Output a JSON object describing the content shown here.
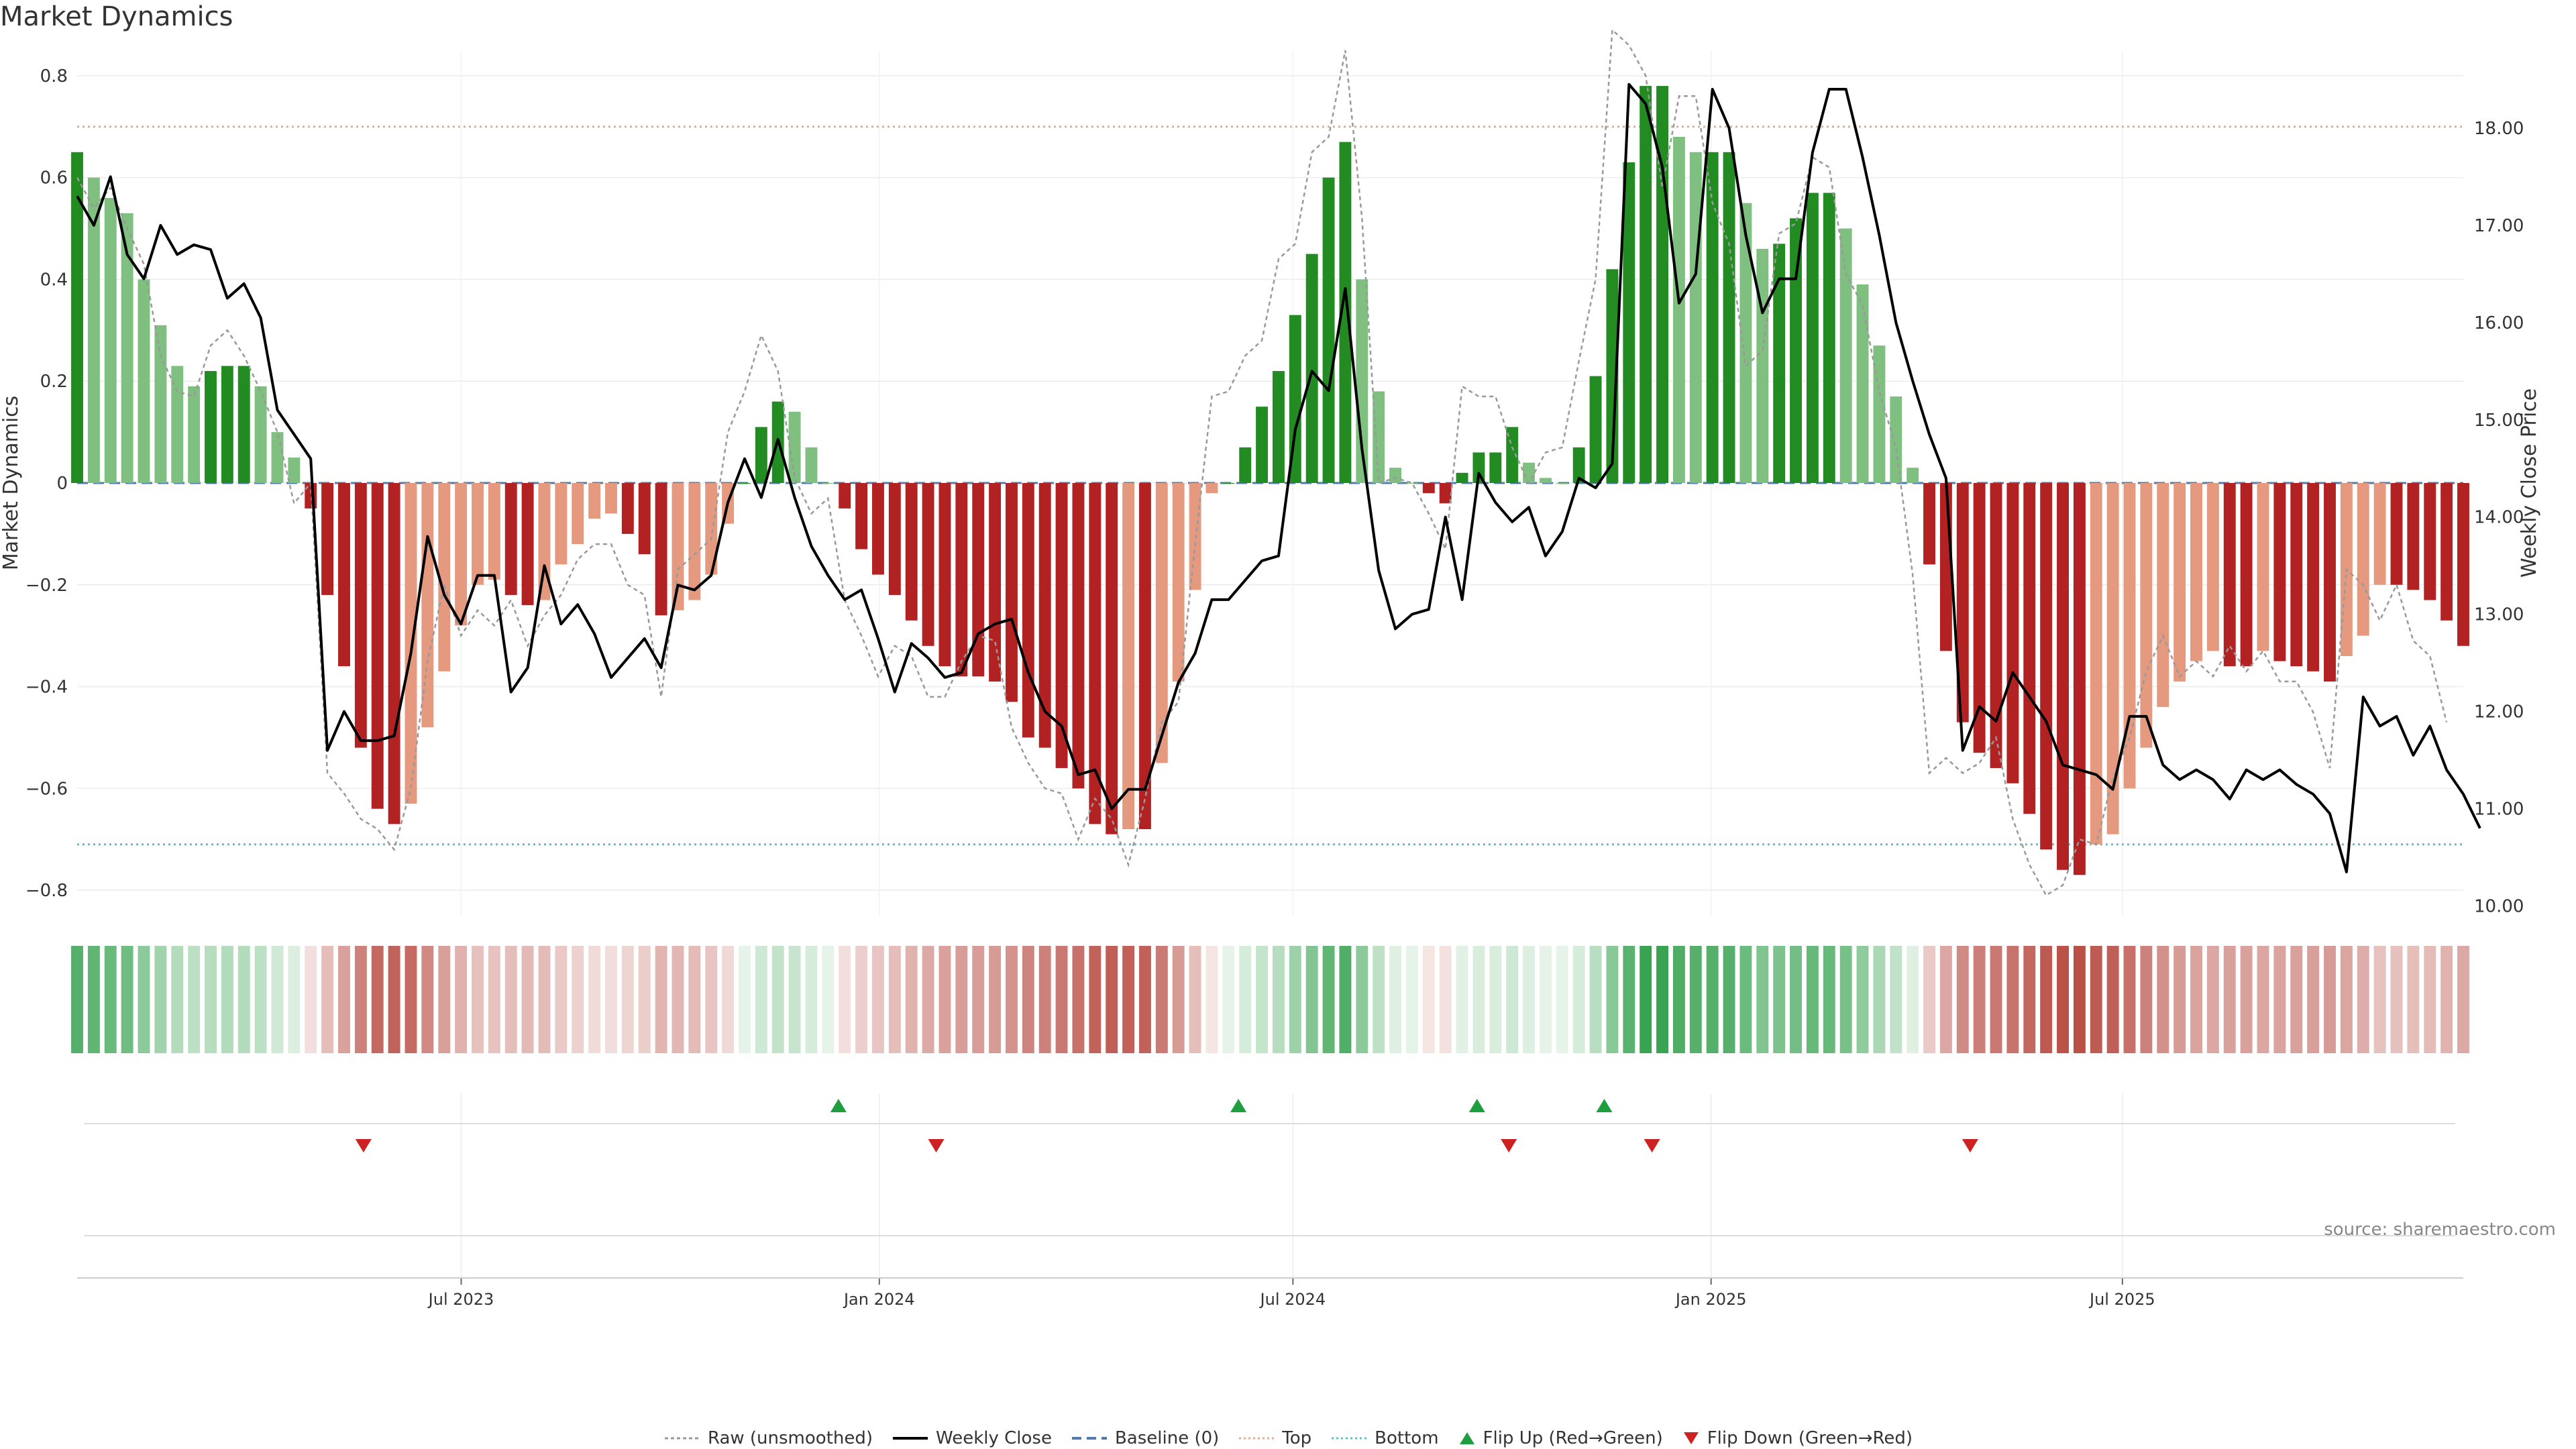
{
  "title": "Market Dynamics",
  "source": "source: sharemaestro.com",
  "chart_data": {
    "type": "bar",
    "title": "Market Dynamics",
    "ylabel": "Market Dynamics",
    "y2label": "Weekly Close Price",
    "ylim": [
      -0.85,
      0.85
    ],
    "y2lim": [
      9.9,
      18.8
    ],
    "yticks": [
      0.8,
      0.6,
      0.4,
      0.2,
      0,
      -0.2,
      -0.4,
      -0.6,
      -0.8
    ],
    "ytick_labels": [
      "0.8",
      "0.6",
      "0.4",
      "0.2",
      "0",
      "−0.2",
      "−0.4",
      "−0.6",
      "−0.8"
    ],
    "y2ticks": [
      18,
      17,
      16,
      15,
      14,
      13,
      12,
      11,
      10
    ],
    "y2tick_labels": [
      "18.00",
      "17.00",
      "16.00",
      "15.00",
      "14.00",
      "13.00",
      "12.00",
      "11.00",
      "10.00"
    ],
    "x_start": "2023-01-13",
    "x_end": "2025-11-28",
    "xticks": [
      {
        "date": "2023-07-01",
        "label": "Jul 2023"
      },
      {
        "date": "2024-01-01",
        "label": "Jan 2024"
      },
      {
        "date": "2024-07-01",
        "label": "Jul 2024"
      },
      {
        "date": "2025-01-01",
        "label": "Jan 2025"
      },
      {
        "date": "2025-07-01",
        "label": "Jul 2025"
      }
    ],
    "top_line": 0.7,
    "bottom_line": -0.71,
    "baseline": 0,
    "grid": true,
    "legend_position": "bottom-center",
    "dynamics": [
      0.65,
      0.6,
      0.56,
      0.53,
      0.4,
      0.31,
      0.23,
      0.19,
      0.22,
      0.23,
      0.23,
      0.19,
      0.1,
      0.05,
      -0.05,
      -0.22,
      -0.36,
      -0.52,
      -0.64,
      -0.67,
      -0.63,
      -0.48,
      -0.37,
      -0.28,
      -0.2,
      -0.19,
      -0.22,
      -0.24,
      -0.23,
      -0.16,
      -0.12,
      -0.07,
      -0.06,
      -0.1,
      -0.14,
      -0.26,
      -0.25,
      -0.23,
      -0.18,
      -0.08,
      0.0,
      0.11,
      0.16,
      0.14,
      0.07,
      0.0,
      -0.05,
      -0.13,
      -0.18,
      -0.22,
      -0.27,
      -0.32,
      -0.36,
      -0.38,
      -0.38,
      -0.39,
      -0.43,
      -0.5,
      -0.52,
      -0.56,
      -0.6,
      -0.67,
      -0.69,
      -0.68,
      -0.68,
      -0.55,
      -0.39,
      -0.21,
      -0.02,
      0.0,
      0.07,
      0.15,
      0.22,
      0.33,
      0.45,
      0.6,
      0.67,
      0.4,
      0.18,
      0.03,
      0.0,
      -0.02,
      -0.04,
      0.02,
      0.06,
      0.06,
      0.11,
      0.04,
      0.01,
      0.0,
      0.07,
      0.21,
      0.42,
      0.63,
      0.78,
      0.78,
      0.68,
      0.65,
      0.65,
      0.65,
      0.55,
      0.46,
      0.47,
      0.52,
      0.57,
      0.57,
      0.5,
      0.39,
      0.27,
      0.17,
      0.03,
      -0.16,
      -0.33,
      -0.47,
      -0.53,
      -0.56,
      -0.59,
      -0.65,
      -0.72,
      -0.76,
      -0.77,
      -0.71,
      -0.69,
      -0.6,
      -0.52,
      -0.44,
      -0.39,
      -0.35,
      -0.33,
      -0.36,
      -0.36,
      -0.33,
      -0.35,
      -0.36,
      -0.37,
      -0.39,
      -0.34,
      -0.3,
      -0.2,
      -0.2,
      -0.21,
      -0.23,
      -0.27,
      -0.32
    ],
    "raw": [
      0.6,
      0.54,
      0.58,
      0.5,
      0.43,
      0.25,
      0.18,
      0.17,
      0.27,
      0.3,
      0.25,
      0.18,
      0.1,
      -0.04,
      0.0,
      -0.57,
      -0.61,
      -0.66,
      -0.68,
      -0.72,
      -0.6,
      -0.35,
      -0.2,
      -0.3,
      -0.25,
      -0.28,
      -0.23,
      -0.32,
      -0.26,
      -0.22,
      -0.15,
      -0.12,
      -0.12,
      -0.2,
      -0.22,
      -0.42,
      -0.17,
      -0.14,
      -0.11,
      0.1,
      0.18,
      0.29,
      0.22,
      0.01,
      -0.06,
      -0.03,
      -0.23,
      -0.3,
      -0.38,
      -0.32,
      -0.34,
      -0.42,
      -0.42,
      -0.35,
      -0.3,
      -0.31,
      -0.48,
      -0.55,
      -0.6,
      -0.61,
      -0.7,
      -0.62,
      -0.66,
      -0.75,
      -0.62,
      -0.47,
      -0.43,
      -0.12,
      0.17,
      0.18,
      0.25,
      0.28,
      0.44,
      0.47,
      0.65,
      0.68,
      0.85,
      0.52,
      0.0,
      0.01,
      0.0,
      -0.06,
      -0.13,
      0.19,
      0.17,
      0.17,
      0.07,
      0.0,
      0.06,
      0.07,
      0.24,
      0.4,
      0.89,
      0.86,
      0.8,
      0.58,
      0.76,
      0.76,
      0.55,
      0.47,
      0.23,
      0.26,
      0.49,
      0.51,
      0.64,
      0.62,
      0.41,
      0.35,
      0.18,
      0.07,
      -0.18,
      -0.57,
      -0.54,
      -0.57,
      -0.55,
      -0.5,
      -0.66,
      -0.75,
      -0.81,
      -0.79,
      -0.7,
      -0.71,
      -0.58,
      -0.5,
      -0.37,
      -0.3,
      -0.38,
      -0.35,
      -0.38,
      -0.32,
      -0.37,
      -0.33,
      -0.39,
      -0.39,
      -0.45,
      -0.56,
      -0.17,
      -0.2,
      -0.27,
      -0.2,
      -0.31,
      -0.34,
      -0.47
    ],
    "weekly_close": [
      17.3,
      17.0,
      17.5,
      16.7,
      16.45,
      17.0,
      16.7,
      16.8,
      16.75,
      16.25,
      16.4,
      16.05,
      15.1,
      14.85,
      14.6,
      11.6,
      12.0,
      11.7,
      11.7,
      11.75,
      12.6,
      13.8,
      13.2,
      12.9,
      13.4,
      13.4,
      12.2,
      12.45,
      13.5,
      12.9,
      13.1,
      12.8,
      12.35,
      12.55,
      12.75,
      12.45,
      13.3,
      13.25,
      13.4,
      14.15,
      14.6,
      14.2,
      14.8,
      14.2,
      13.7,
      13.4,
      13.15,
      13.25,
      12.75,
      12.2,
      12.7,
      12.55,
      12.35,
      12.4,
      12.8,
      12.9,
      12.95,
      12.4,
      12.0,
      11.85,
      11.35,
      11.4,
      11.0,
      11.2,
      11.2,
      11.75,
      12.3,
      12.6,
      13.15,
      13.15,
      13.35,
      13.55,
      13.6,
      14.9,
      15.5,
      15.3,
      16.35,
      14.7,
      13.45,
      12.85,
      13.0,
      13.05,
      14.0,
      13.15,
      14.45,
      14.15,
      13.95,
      14.1,
      13.6,
      13.85,
      14.4,
      14.3,
      14.55,
      18.45,
      18.25,
      17.6,
      16.2,
      16.5,
      18.4,
      18.0,
      16.9,
      16.1,
      16.45,
      16.45,
      17.75,
      18.4,
      18.4,
      17.7,
      16.9,
      16.0,
      15.4,
      14.85,
      14.4,
      11.6,
      12.05,
      11.9,
      12.4,
      12.15,
      11.9,
      11.45,
      11.4,
      11.35,
      11.2,
      11.95,
      11.95,
      11.45,
      11.3,
      11.4,
      11.3,
      11.1,
      11.4,
      11.3,
      11.4,
      11.25,
      11.15,
      10.95,
      10.35,
      12.15,
      11.85,
      11.95,
      11.55,
      11.85,
      11.4,
      11.15,
      10.8
    ],
    "flip_up_dates": [
      "2023-12-14",
      "2024-06-07",
      "2024-09-20",
      "2024-11-15"
    ],
    "flip_down_dates": [
      "2023-05-19",
      "2024-01-26",
      "2024-10-04",
      "2024-12-06",
      "2025-04-25"
    ],
    "colors": {
      "strong_green": "#228B22",
      "light_green": "#7FBF7F",
      "strong_red": "#B22222",
      "light_red": "#E59A80",
      "raw_line": "#999999",
      "weekly_close_line": "#000000",
      "baseline": "#4F7CAC",
      "top": "#E8A88A",
      "bottom": "#5BC0C8",
      "flip_up": "#1E9E3E",
      "flip_down": "#CC2222"
    }
  },
  "legend": [
    {
      "id": "raw",
      "label": "Raw (unsmoothed)"
    },
    {
      "id": "close",
      "label": "Weekly Close"
    },
    {
      "id": "baseline",
      "label": "Baseline (0)"
    },
    {
      "id": "top",
      "label": "Top"
    },
    {
      "id": "bottom",
      "label": "Bottom"
    },
    {
      "id": "flip-up",
      "label": "Flip Up (Red→Green)"
    },
    {
      "id": "flip-down",
      "label": "Flip Down (Green→Red)"
    }
  ]
}
